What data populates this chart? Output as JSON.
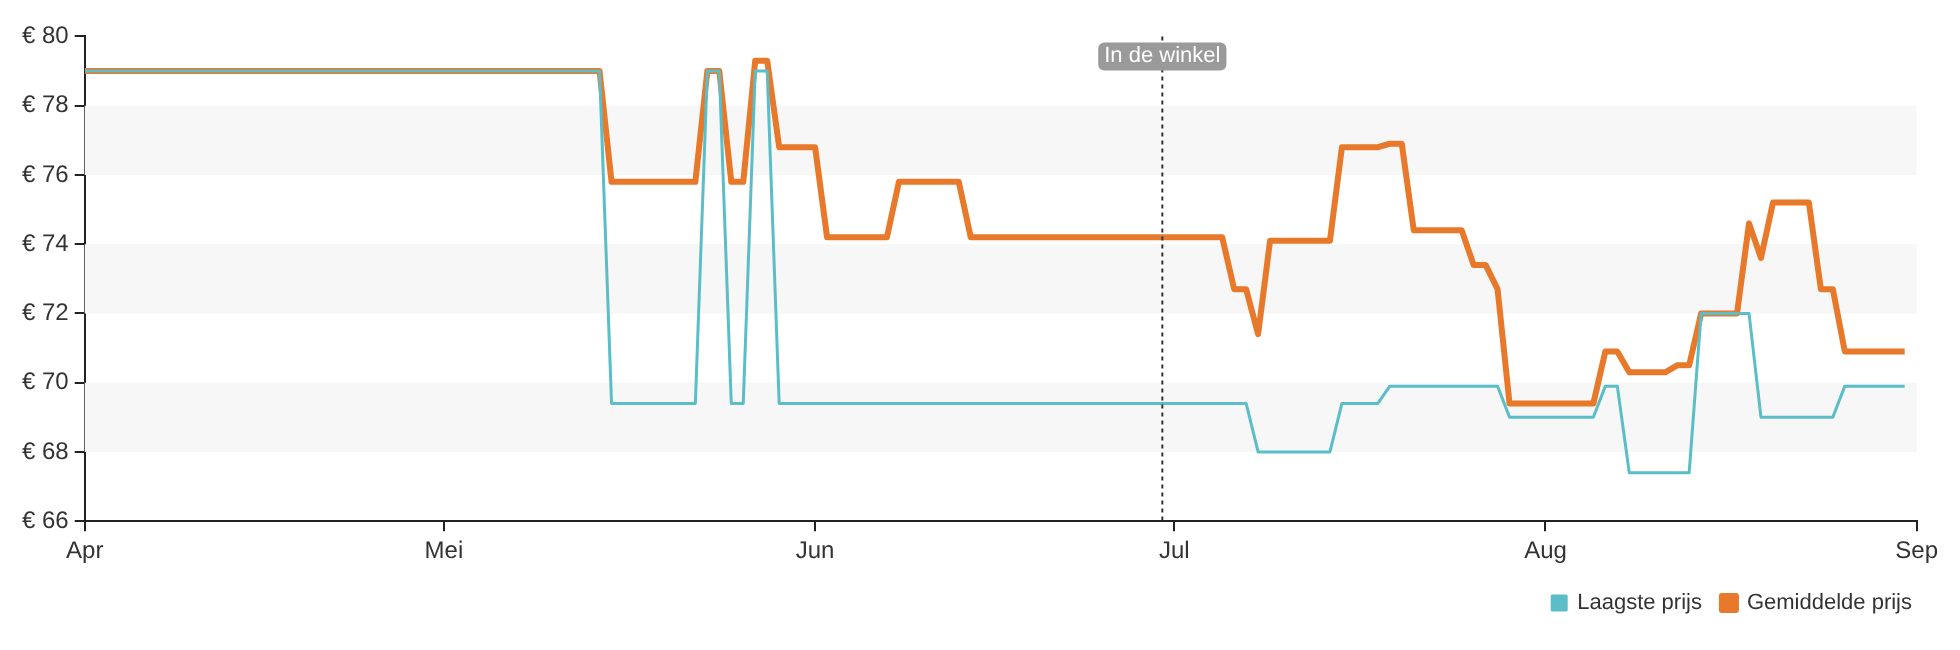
{
  "chart_data": {
    "type": "line",
    "xlim": [
      "--04-01",
      "--09-01"
    ],
    "xticks": [
      {
        "value": "--04-01",
        "label": "Apr"
      },
      {
        "value": "--05-01",
        "label": "Mei"
      },
      {
        "value": "--06-01",
        "label": "Jun"
      },
      {
        "value": "--07-01",
        "label": "Jul"
      },
      {
        "value": "--08-01",
        "label": "Aug"
      },
      {
        "value": "--09-01",
        "label": "Sep"
      }
    ],
    "ylim": [
      66,
      80
    ],
    "yticks": [
      {
        "value": 66,
        "label": "€ 66"
      },
      {
        "value": 68,
        "label": "€ 68"
      },
      {
        "value": 70,
        "label": "€ 70"
      },
      {
        "value": 72,
        "label": "€ 72"
      },
      {
        "value": 74,
        "label": "€ 74"
      },
      {
        "value": 76,
        "label": "€ 76"
      },
      {
        "value": 78,
        "label": "€ 78"
      },
      {
        "value": 80,
        "label": "€ 80"
      }
    ],
    "bands": [
      {
        "axis": "y",
        "from": 68,
        "to": 70,
        "color": "#f7f7f7"
      },
      {
        "axis": "y",
        "from": 72,
        "to": 74,
        "color": "#f7f7f7"
      },
      {
        "axis": "y",
        "from": 76,
        "to": 78,
        "color": "#f7f7f7"
      }
    ],
    "legend": "bottom right",
    "marker": "none",
    "line_style": "solid",
    "ref_lines": [
      {
        "axis": "x",
        "value": "--06-30",
        "label": "In de winkel",
        "line_style": "dotted",
        "color": "#333333"
      }
    ],
    "series": [
      {
        "name": "Gemiddelde prijs",
        "color": "#e8792a",
        "x": [
          "--04-01",
          "--05-14",
          "--05-15",
          "--05-22",
          "--05-23",
          "--05-24",
          "--05-25",
          "--05-26",
          "--05-27",
          "--05-28",
          "--05-29",
          "--06-01",
          "--06-02",
          "--06-07",
          "--06-08",
          "--06-13",
          "--06-14",
          "--07-05",
          "--07-06",
          "--07-07",
          "--07-08",
          "--07-09",
          "--07-14",
          "--07-15",
          "--07-18",
          "--07-19",
          "--07-20",
          "--07-21",
          "--07-25",
          "--07-26",
          "--07-27",
          "--07-28",
          "--07-29",
          "--08-05",
          "--08-06",
          "--08-07",
          "--08-08",
          "--08-11",
          "--08-12",
          "--08-13",
          "--08-14",
          "--08-17",
          "--08-18",
          "--08-19",
          "--08-20",
          "--08-23",
          "--08-24",
          "--08-25",
          "--08-26",
          "--08-31"
        ],
        "values": [
          79,
          79,
          75.8,
          75.8,
          79,
          79,
          75.8,
          75.8,
          79.3,
          79.3,
          76.8,
          76.8,
          74.2,
          74.2,
          75.8,
          75.8,
          74.2,
          74.2,
          72.7,
          72.7,
          71.4,
          74.1,
          74.1,
          76.8,
          76.8,
          76.9,
          76.9,
          74.4,
          74.4,
          73.4,
          73.4,
          72.7,
          69.4,
          69.4,
          70.9,
          70.9,
          70.3,
          70.3,
          70.5,
          70.5,
          72,
          72,
          74.6,
          73.6,
          75.2,
          75.2,
          72.7,
          72.7,
          70.9,
          70.9
        ]
      },
      {
        "name": "Laagste prijs",
        "color": "#5bbdc7",
        "x": [
          "--04-01",
          "--05-14",
          "--05-15",
          "--05-22",
          "--05-23",
          "--05-24",
          "--05-25",
          "--05-26",
          "--05-27",
          "--05-28",
          "--05-29",
          "--07-07",
          "--07-08",
          "--07-14",
          "--07-15",
          "--07-18",
          "--07-19",
          "--07-28",
          "--07-29",
          "--08-05",
          "--08-06",
          "--08-07",
          "--08-08",
          "--08-13",
          "--08-14",
          "--08-18",
          "--08-19",
          "--08-25",
          "--08-26",
          "--08-31"
        ],
        "values": [
          79,
          79,
          69.4,
          69.4,
          79,
          79,
          69.4,
          69.4,
          79,
          79,
          69.4,
          69.4,
          68,
          68,
          69.4,
          69.4,
          69.9,
          69.9,
          69,
          69,
          69.9,
          69.9,
          67.4,
          67.4,
          72,
          72,
          69,
          69,
          69.9,
          69.9
        ]
      }
    ]
  }
}
